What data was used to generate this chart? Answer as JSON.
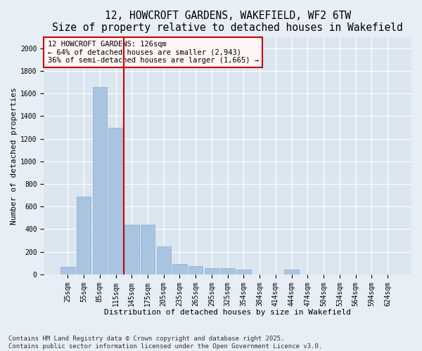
{
  "title": "12, HOWCROFT GARDENS, WAKEFIELD, WF2 6TW",
  "subtitle": "Size of property relative to detached houses in Wakefield",
  "xlabel": "Distribution of detached houses by size in Wakefield",
  "ylabel": "Number of detached properties",
  "categories": [
    "25sqm",
    "55sqm",
    "85sqm",
    "115sqm",
    "145sqm",
    "175sqm",
    "205sqm",
    "235sqm",
    "265sqm",
    "295sqm",
    "325sqm",
    "354sqm",
    "384sqm",
    "414sqm",
    "444sqm",
    "474sqm",
    "504sqm",
    "534sqm",
    "564sqm",
    "594sqm",
    "624sqm"
  ],
  "values": [
    70,
    690,
    1660,
    1300,
    440,
    440,
    250,
    90,
    75,
    55,
    55,
    40,
    0,
    0,
    40,
    0,
    0,
    0,
    0,
    0,
    0
  ],
  "bar_color": "#a8c4e0",
  "bar_edge_color": "#8ab0d0",
  "vline_color": "#cc0000",
  "vline_x_index": 3.5,
  "annotation_text": "12 HOWCROFT GARDENS: 126sqm\n← 64% of detached houses are smaller (2,943)\n36% of semi-detached houses are larger (1,665) →",
  "annotation_edge_color": "#cc0000",
  "annotation_face_color": "#fff5f5",
  "ylim": [
    0,
    2100
  ],
  "yticks": [
    0,
    200,
    400,
    600,
    800,
    1000,
    1200,
    1400,
    1600,
    1800,
    2000
  ],
  "bg_color": "#e8eef5",
  "plot_bg_color": "#dce6f0",
  "grid_color": "#ffffff",
  "footer": "Contains HM Land Registry data © Crown copyright and database right 2025.\nContains public sector information licensed under the Open Government Licence v3.0.",
  "title_fontsize": 10.5,
  "subtitle_fontsize": 9,
  "axis_label_fontsize": 8,
  "tick_fontsize": 7,
  "footer_fontsize": 6.5,
  "annotation_fontsize": 7.5
}
